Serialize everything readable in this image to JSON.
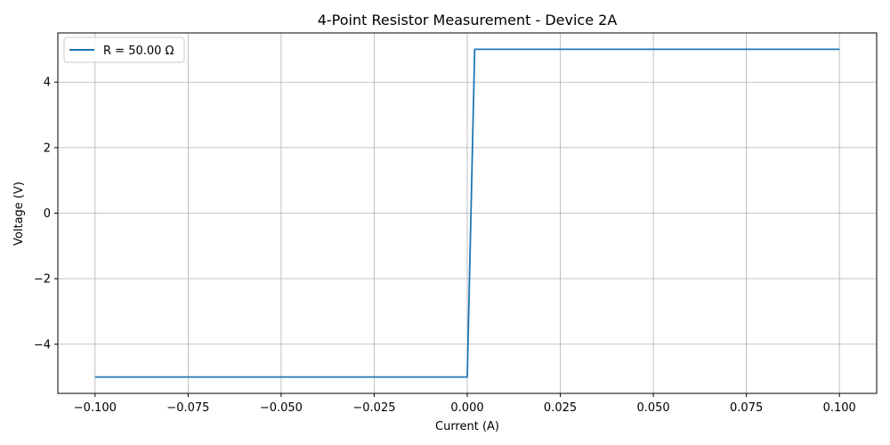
{
  "chart_data": {
    "type": "line",
    "title": "4-Point Resistor Measurement - Device 2A",
    "xlabel": "Current (A)",
    "ylabel": "Voltage (V)",
    "xlim": [
      -0.11,
      0.11
    ],
    "ylim": [
      -5.5,
      5.5
    ],
    "xticks": [
      -0.1,
      -0.075,
      -0.05,
      -0.025,
      0.0,
      0.025,
      0.05,
      0.075,
      0.1
    ],
    "xtick_labels": [
      "−0.100",
      "−0.075",
      "−0.050",
      "−0.025",
      "0.000",
      "0.025",
      "0.050",
      "0.075",
      "0.100"
    ],
    "yticks": [
      -4,
      -2,
      0,
      2,
      4
    ],
    "ytick_labels": [
      "−4",
      "−2",
      "0",
      "2",
      "4"
    ],
    "grid": true,
    "legend_position": "top-left",
    "series": [
      {
        "name": "R = 50.00 Ω",
        "color": "#1f77b4",
        "x": [
          -0.1,
          -0.002,
          0.0,
          0.002,
          0.1
        ],
        "y": [
          -5.0,
          -5.0,
          -5.0,
          5.0,
          5.0
        ]
      }
    ]
  }
}
